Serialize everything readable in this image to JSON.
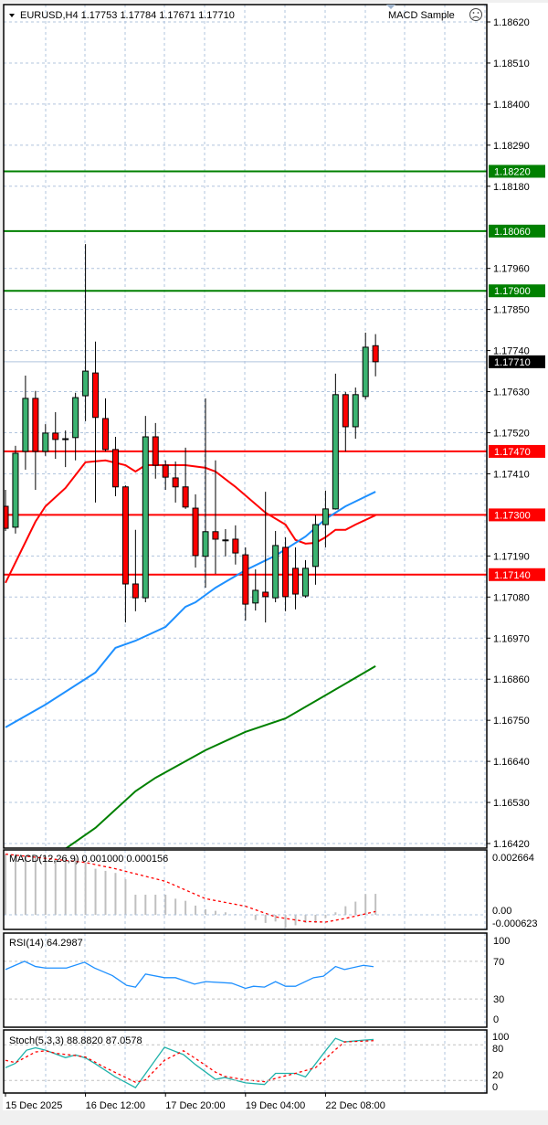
{
  "header": {
    "symbol_line": "EURUSD,H4  1.17753 1.17784 1.17671 1.17710",
    "expert_label": "MACD Sample",
    "expert_icon": "sad-face-icon"
  },
  "colors": {
    "bull": "#3CB371",
    "bear": "#FF0000",
    "wick": "#000000",
    "ma_fast": "#FF0000",
    "ma_mid": "#1E90FF",
    "ma_slow": "#008000",
    "support": "#FF0000",
    "resistance": "#008000",
    "current_price_badge": "#000000",
    "grid": "#B0C4DE",
    "macd_hist": "#C0C0C0",
    "macd_signal": "#FF0000",
    "rsi": "#1E90FF",
    "stoch_main": "#20B2AA",
    "stoch_signal": "#FF0000"
  },
  "chart_data": [
    {
      "type": "candlestick",
      "title": "EURUSD,H4",
      "ylim": [
        1.1642,
        1.1862
      ],
      "grid": true,
      "y_ticks": [
        "1.18620",
        "1.18510",
        "1.18400",
        "1.18290",
        "1.18180",
        "1.17960",
        "1.17850",
        "1.17740",
        "1.17630",
        "1.17520",
        "1.17410",
        "1.17190",
        "1.17080",
        "1.16970",
        "1.16860",
        "1.16750",
        "1.16640",
        "1.16530",
        "1.16420"
      ],
      "x_ticks": [
        "15 Dec 2025",
        "16 Dec 12:00",
        "17 Dec 20:00",
        "19 Dec 04:00",
        "22 Dec 08:00"
      ],
      "x_tick_index": [
        0,
        8,
        16,
        24,
        32
      ],
      "current_price": "1.17710",
      "ohlc": [
        [
          1.17323,
          1.17367,
          1.17257,
          1.17264
        ],
        [
          1.17267,
          1.17485,
          1.1725,
          1.17465
        ],
        [
          1.1747,
          1.17673,
          1.17421,
          1.17612
        ],
        [
          1.17612,
          1.17632,
          1.17367,
          1.1747
        ],
        [
          1.1747,
          1.17543,
          1.17458,
          1.17519
        ],
        [
          1.17519,
          1.17575,
          1.1745,
          1.17502
        ],
        [
          1.17504,
          1.17526,
          1.17428,
          1.17503
        ],
        [
          1.17507,
          1.17627,
          1.17446,
          1.17614
        ],
        [
          1.17619,
          1.18025,
          1.17551,
          1.17685
        ],
        [
          1.1768,
          1.17764,
          1.17333,
          1.17561
        ],
        [
          1.17558,
          1.17612,
          1.1747,
          1.17475
        ],
        [
          1.17475,
          1.17509,
          1.1735,
          1.17375
        ],
        [
          1.17375,
          1.17379,
          1.17012,
          1.17115
        ],
        [
          1.17115,
          1.1726,
          1.17042,
          1.17078
        ],
        [
          1.17078,
          1.17565,
          1.17066,
          1.17509
        ],
        [
          1.17509,
          1.17546,
          1.17397,
          1.17433
        ],
        [
          1.17433,
          1.17446,
          1.17367,
          1.17401
        ],
        [
          1.17399,
          1.17443,
          1.17333,
          1.17375
        ],
        [
          1.17375,
          1.1748,
          1.17316,
          1.17321
        ],
        [
          1.17318,
          1.17355,
          1.17159,
          1.17191
        ],
        [
          1.17189,
          1.17612,
          1.17105,
          1.17255
        ],
        [
          1.17255,
          1.17446,
          1.17142,
          1.17235
        ],
        [
          1.17233,
          1.17262,
          1.17189,
          1.17232
        ],
        [
          1.17235,
          1.17272,
          1.17167,
          1.17198
        ],
        [
          1.17193,
          1.17213,
          1.17017,
          1.17061
        ],
        [
          1.17064,
          1.17154,
          1.17044,
          1.17098
        ],
        [
          1.17093,
          1.17362,
          1.17012,
          1.17081
        ],
        [
          1.17078,
          1.17257,
          1.17066,
          1.17218
        ],
        [
          1.17213,
          1.1724,
          1.17042,
          1.17081
        ],
        [
          1.17157,
          1.17213,
          1.17047,
          1.17088
        ],
        [
          1.17083,
          1.17179,
          1.17078,
          1.17157
        ],
        [
          1.17162,
          1.17299,
          1.17113,
          1.17274
        ],
        [
          1.17274,
          1.17365,
          1.17213,
          1.17316
        ],
        [
          1.17316,
          1.17678,
          1.17314,
          1.17622
        ],
        [
          1.17622,
          1.17629,
          1.1747,
          1.17536
        ],
        [
          1.17536,
          1.17641,
          1.17504,
          1.17622
        ],
        [
          1.17617,
          1.17788,
          1.17609,
          1.17749
        ],
        [
          1.17753,
          1.17784,
          1.17671,
          1.1771
        ]
      ],
      "moving_averages": [
        {
          "color_key": "ma_fast",
          "points": [
            [
              0,
              1.17118
            ],
            [
              3,
              1.17282
            ],
            [
              4,
              1.17323
            ],
            [
              6,
              1.17372
            ],
            [
              8,
              1.17441
            ],
            [
              10,
              1.17446
            ],
            [
              12,
              1.17433
            ],
            [
              13,
              1.17416
            ],
            [
              14,
              1.17433
            ],
            [
              18,
              1.17433
            ],
            [
              20,
              1.17426
            ],
            [
              21,
              1.17416
            ],
            [
              23,
              1.17375
            ],
            [
              26,
              1.17306
            ],
            [
              28,
              1.17274
            ],
            [
              29,
              1.17233
            ],
            [
              30,
              1.17223
            ],
            [
              31,
              1.17225
            ],
            [
              32,
              1.1724
            ],
            [
              33,
              1.1726
            ],
            [
              34,
              1.1726
            ],
            [
              35,
              1.17274
            ],
            [
              37,
              1.17299
            ]
          ]
        },
        {
          "color_key": "ma_mid",
          "points": [
            [
              0,
              1.16731
            ],
            [
              4,
              1.16792
            ],
            [
              9,
              1.16878
            ],
            [
              11,
              1.16944
            ],
            [
              13,
              1.16963
            ],
            [
              16,
              1.17
            ],
            [
              18,
              1.17054
            ],
            [
              19,
              1.17066
            ],
            [
              21,
              1.17105
            ],
            [
              24,
              1.17152
            ],
            [
              27,
              1.17191
            ],
            [
              30,
              1.17242
            ],
            [
              32,
              1.17289
            ],
            [
              34,
              1.17323
            ],
            [
              37,
              1.17362
            ]
          ]
        },
        {
          "color_key": "ma_slow",
          "points": [
            [
              6,
              1.16406
            ],
            [
              9,
              1.16462
            ],
            [
              13,
              1.1656
            ],
            [
              15,
              1.16596
            ],
            [
              20,
              1.1667
            ],
            [
              24,
              1.16719
            ],
            [
              28,
              1.16755
            ],
            [
              32,
              1.16817
            ],
            [
              37,
              1.16895
            ]
          ]
        }
      ],
      "levels": [
        {
          "price": "1.18220",
          "kind": "resistance"
        },
        {
          "price": "1.18060",
          "kind": "resistance"
        },
        {
          "price": "1.17900",
          "kind": "resistance"
        },
        {
          "price": "1.17470",
          "kind": "support"
        },
        {
          "price": "1.17300",
          "kind": "support"
        },
        {
          "price": "1.17140",
          "kind": "support"
        }
      ]
    },
    {
      "type": "bar",
      "title": "MACD(12,26,9) 0.001000 0.000156",
      "y_ticks": [
        "0.002664",
        "0.00",
        "-0.000623"
      ],
      "histogram": [
        0.0029,
        0.0029,
        0.0028,
        0.0028,
        0.0028,
        0.0027,
        0.0027,
        0.0027,
        0.0025,
        0.0022,
        0.0021,
        0.002,
        0.0017,
        0.00096,
        0.00096,
        0.00096,
        0.00096,
        0.00077,
        0.00067,
        0.00044,
        0.00026,
        0.00019,
        0.00012,
        4e-05,
        0.0,
        -0.00025,
        -0.00039,
        -0.00032,
        -0.00061,
        -0.0005,
        -0.00039,
        -0.00039,
        -0.00015,
        0.00012,
        0.00041,
        0.00063,
        0.00099,
        0.001
      ],
      "signal": [
        [
          0,
          0.0029
        ],
        [
          8,
          0.0025
        ],
        [
          11,
          0.0022
        ],
        [
          16,
          0.0016
        ],
        [
          20,
          0.00077
        ],
        [
          24,
          0.00041
        ],
        [
          27,
          -0.0001
        ],
        [
          30,
          -0.00032
        ],
        [
          32,
          -0.00035
        ],
        [
          34,
          -0.00017
        ],
        [
          37,
          0.000156
        ]
      ]
    },
    {
      "type": "line",
      "title": "RSI(14) 64.2987",
      "ylim": [
        0,
        100
      ],
      "y_ticks": [
        "100",
        "70",
        "30",
        "0"
      ],
      "values": [
        [
          0,
          61.3
        ],
        [
          1.9,
          70
        ],
        [
          3,
          64.5
        ],
        [
          4,
          62.9
        ],
        [
          6.1,
          62.9
        ],
        [
          7.9,
          69
        ],
        [
          8.9,
          62.9
        ],
        [
          10.7,
          54.8
        ],
        [
          12.1,
          44.5
        ],
        [
          13,
          42.6
        ],
        [
          14,
          56.5
        ],
        [
          15.9,
          52.6
        ],
        [
          17,
          52.6
        ],
        [
          18.9,
          45.8
        ],
        [
          20,
          48.4
        ],
        [
          22.6,
          46.8
        ],
        [
          24,
          41.3
        ],
        [
          24.8,
          43.5
        ],
        [
          25.9,
          42.6
        ],
        [
          27,
          48.4
        ],
        [
          28,
          43.5
        ],
        [
          29,
          43.5
        ],
        [
          30.8,
          52.6
        ],
        [
          31.8,
          54.2
        ],
        [
          33,
          64.5
        ],
        [
          33.9,
          61.3
        ],
        [
          35.8,
          65.8
        ],
        [
          36.8,
          64.3
        ]
      ]
    },
    {
      "type": "line",
      "title": "Stoch(5,3,3) 88.8820 87.0578",
      "ylim": [
        0,
        100
      ],
      "y_ticks": [
        "100",
        "80",
        "20",
        "0"
      ],
      "series": [
        {
          "color_key": "stoch_main",
          "values": [
            [
              0,
              41.5
            ],
            [
              1,
              49
            ],
            [
              2.1,
              71
            ],
            [
              3,
              75
            ],
            [
              4,
              71
            ],
            [
              6,
              58.5
            ],
            [
              7,
              63
            ],
            [
              8,
              58
            ],
            [
              8.9,
              49
            ],
            [
              11,
              26
            ],
            [
              13,
              8
            ],
            [
              15.9,
              76
            ],
            [
              17.8,
              63.6
            ],
            [
              19,
              46.7
            ],
            [
              21,
              22
            ],
            [
              21.9,
              25
            ],
            [
              24,
              16
            ],
            [
              25.9,
              13.3
            ],
            [
              27,
              32
            ],
            [
              29,
              32
            ],
            [
              30,
              26
            ],
            [
              32,
              70
            ],
            [
              33,
              91
            ],
            [
              33.9,
              85
            ],
            [
              35.8,
              88
            ],
            [
              36.8,
              89
            ]
          ]
        },
        {
          "color_key": "stoch_signal",
          "values": [
            [
              0,
              54
            ],
            [
              1,
              50
            ],
            [
              3,
              68
            ],
            [
              4,
              70
            ],
            [
              5.1,
              65.6
            ],
            [
              7,
              62
            ],
            [
              8,
              59.5
            ],
            [
              10,
              41.5
            ],
            [
              13,
              17
            ],
            [
              14,
              21
            ],
            [
              15.9,
              54
            ],
            [
              17.8,
              70
            ],
            [
              19,
              57
            ],
            [
              21,
              34
            ],
            [
              21.9,
              27
            ],
            [
              24,
              21
            ],
            [
              25.9,
              18
            ],
            [
              27,
              23.6
            ],
            [
              29,
              32
            ],
            [
              31,
              41.5
            ],
            [
              33,
              72
            ],
            [
              33.9,
              85
            ],
            [
              36.8,
              87
            ]
          ]
        }
      ]
    }
  ]
}
